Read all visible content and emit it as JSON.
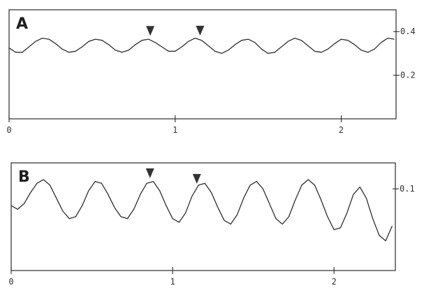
{
  "chart_data": [
    {
      "type": "line",
      "panel_label": "A",
      "x_ticks": [
        {
          "value": 0,
          "label": "0"
        },
        {
          "value": 1,
          "label": "1"
        },
        {
          "value": 2,
          "label": "2"
        }
      ],
      "y_ticks": [
        {
          "value": 0.4,
          "label": "0.4"
        },
        {
          "value": 0.2,
          "label": "0.2"
        }
      ],
      "xlim": [
        0,
        2.33
      ],
      "ylim": [
        0.0,
        0.5
      ],
      "axis_side_y": "right",
      "grid": false,
      "series": [
        {
          "x": [
            0.0,
            0.04,
            0.08,
            0.12,
            0.16,
            0.2,
            0.24,
            0.28,
            0.32,
            0.36,
            0.4,
            0.44,
            0.48,
            0.52,
            0.56,
            0.6,
            0.64,
            0.68,
            0.72,
            0.76,
            0.8,
            0.84,
            0.88,
            0.92,
            0.96,
            1.0,
            1.04,
            1.08,
            1.12,
            1.16,
            1.2,
            1.24,
            1.28,
            1.32,
            1.36,
            1.4,
            1.44,
            1.48,
            1.52,
            1.56,
            1.6,
            1.64,
            1.68,
            1.72,
            1.76,
            1.8,
            1.84,
            1.88,
            1.92,
            1.96,
            2.0,
            2.04,
            2.08,
            2.12,
            2.16,
            2.2,
            2.24,
            2.28,
            2.32
          ],
          "y": [
            0.325,
            0.305,
            0.305,
            0.33,
            0.355,
            0.37,
            0.365,
            0.345,
            0.32,
            0.305,
            0.31,
            0.33,
            0.355,
            0.365,
            0.36,
            0.34,
            0.315,
            0.305,
            0.315,
            0.34,
            0.36,
            0.365,
            0.35,
            0.33,
            0.31,
            0.31,
            0.33,
            0.355,
            0.37,
            0.36,
            0.335,
            0.31,
            0.3,
            0.315,
            0.34,
            0.36,
            0.365,
            0.35,
            0.32,
            0.3,
            0.305,
            0.33,
            0.355,
            0.37,
            0.36,
            0.335,
            0.31,
            0.305,
            0.32,
            0.345,
            0.365,
            0.36,
            0.34,
            0.315,
            0.305,
            0.32,
            0.35,
            0.37,
            0.365
          ]
        }
      ],
      "markers_x": [
        0.85,
        1.15
      ]
    },
    {
      "type": "line",
      "panel_label": "B",
      "x_ticks": [
        {
          "value": 0,
          "label": "0"
        },
        {
          "value": 1,
          "label": "1"
        },
        {
          "value": 2,
          "label": "2"
        }
      ],
      "y_ticks": [
        {
          "value": 0.1,
          "label": "0.1"
        }
      ],
      "xlim": [
        0,
        2.38
      ],
      "ylim": [
        -0.12,
        0.17
      ],
      "axis_side_y": "right",
      "grid": false,
      "series": [
        {
          "x": [
            0.0,
            0.04,
            0.08,
            0.12,
            0.16,
            0.2,
            0.24,
            0.28,
            0.32,
            0.36,
            0.4,
            0.44,
            0.48,
            0.52,
            0.56,
            0.6,
            0.64,
            0.68,
            0.72,
            0.76,
            0.8,
            0.84,
            0.88,
            0.92,
            0.96,
            1.0,
            1.04,
            1.08,
            1.12,
            1.16,
            1.2,
            1.24,
            1.28,
            1.32,
            1.36,
            1.4,
            1.44,
            1.48,
            1.52,
            1.56,
            1.6,
            1.64,
            1.68,
            1.72,
            1.76,
            1.8,
            1.84,
            1.88,
            1.92,
            1.96,
            2.0,
            2.04,
            2.08,
            2.12,
            2.16,
            2.2,
            2.24,
            2.28,
            2.32,
            2.36
          ],
          "y": [
            0.055,
            0.045,
            0.06,
            0.09,
            0.115,
            0.125,
            0.11,
            0.075,
            0.04,
            0.02,
            0.025,
            0.055,
            0.095,
            0.12,
            0.115,
            0.085,
            0.05,
            0.025,
            0.02,
            0.045,
            0.085,
            0.115,
            0.12,
            0.095,
            0.055,
            0.02,
            0.01,
            0.035,
            0.08,
            0.11,
            0.115,
            0.09,
            0.05,
            0.015,
            0.005,
            0.03,
            0.075,
            0.11,
            0.12,
            0.1,
            0.06,
            0.02,
            0.005,
            0.025,
            0.07,
            0.11,
            0.125,
            0.11,
            0.07,
            0.025,
            -0.01,
            -0.005,
            0.035,
            0.085,
            0.105,
            0.075,
            0.02,
            -0.025,
            -0.04,
            0.0
          ]
        }
      ],
      "markers_x": [
        0.86,
        1.15
      ]
    }
  ]
}
